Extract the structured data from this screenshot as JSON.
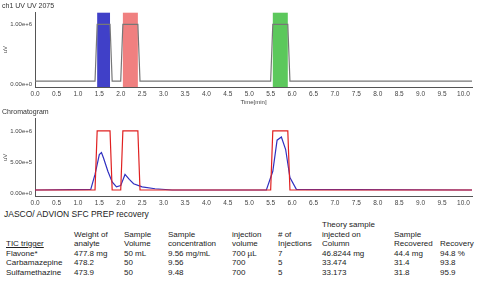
{
  "chart_data": [
    {
      "type": "line",
      "title": "ch1 UV UV 2075",
      "y_label": "uV",
      "x_label": "Time[min]",
      "xlim": [
        0,
        10.2
      ],
      "xticks": [
        {
          "value": 0,
          "label": "0.0"
        },
        {
          "value": 0.5,
          "label": "0.5"
        },
        {
          "value": 1,
          "label": "1.0"
        },
        {
          "value": 1.5,
          "label": "1.5"
        },
        {
          "value": 2,
          "label": "2.0"
        },
        {
          "value": 2.5,
          "label": "2.5"
        },
        {
          "value": 3,
          "label": "3.0"
        },
        {
          "value": 3.5,
          "label": "3.5"
        },
        {
          "value": 4,
          "label": "4.0"
        },
        {
          "value": 4.5,
          "label": "4.5"
        },
        {
          "value": 5,
          "label": "5.0"
        },
        {
          "value": 5.5,
          "label": "5.5"
        },
        {
          "value": 6,
          "label": "6.0"
        },
        {
          "value": 6.5,
          "label": "6.5"
        },
        {
          "value": 7,
          "label": "7.0"
        },
        {
          "value": 7.5,
          "label": "7.5"
        },
        {
          "value": 8,
          "label": "8.0"
        },
        {
          "value": 8.5,
          "label": "8.5"
        },
        {
          "value": 9,
          "label": "9.0"
        },
        {
          "value": 9.5,
          "label": "9.5"
        },
        {
          "value": 10,
          "label": "10.0"
        }
      ],
      "ylim": [
        -50000,
        1200000
      ],
      "yticks": [
        {
          "value": 0,
          "label": "0.00e+0"
        },
        {
          "value": 1000000,
          "label": "1.00e+6"
        }
      ],
      "grid": false,
      "fractions": [
        {
          "start": 1.45,
          "end": 1.75,
          "color": "#4040c8"
        },
        {
          "start": 2.05,
          "end": 2.4,
          "color": "#f08080"
        },
        {
          "start": 5.55,
          "end": 5.9,
          "color": "#5cc85c"
        }
      ],
      "series": [
        {
          "color": "#777777",
          "x": [
            0,
            1.4,
            1.45,
            1.75,
            1.8,
            2.0,
            2.05,
            2.4,
            2.45,
            5.5,
            5.55,
            5.9,
            5.95,
            10.2
          ],
          "values": [
            50000,
            50000,
            1000000,
            1000000,
            50000,
            50000,
            1000000,
            1000000,
            50000,
            50000,
            1000000,
            1000000,
            50000,
            50000
          ]
        }
      ]
    },
    {
      "type": "line",
      "title": "Chromatogram",
      "y_label": "uV",
      "xlim": [
        0,
        10.2
      ],
      "xticks": [
        {
          "value": 0,
          "label": "0.0"
        },
        {
          "value": 0.5,
          "label": "0.5"
        },
        {
          "value": 1,
          "label": "1.0"
        },
        {
          "value": 1.5,
          "label": "1.5"
        },
        {
          "value": 2,
          "label": "2.0"
        },
        {
          "value": 2.5,
          "label": "2.5"
        },
        {
          "value": 3,
          "label": "3.0"
        },
        {
          "value": 3.5,
          "label": "3.5"
        },
        {
          "value": 4,
          "label": "4.0"
        },
        {
          "value": 4.5,
          "label": "4.5"
        },
        {
          "value": 5,
          "label": "5.0"
        },
        {
          "value": 5.5,
          "label": "5.5"
        },
        {
          "value": 6,
          "label": "6.0"
        },
        {
          "value": 6.5,
          "label": "6.5"
        },
        {
          "value": 7,
          "label": "7.0"
        },
        {
          "value": 7.5,
          "label": "7.5"
        },
        {
          "value": 8,
          "label": "8.0"
        },
        {
          "value": 8.5,
          "label": "8.5"
        },
        {
          "value": 9,
          "label": "9.0"
        },
        {
          "value": 9.5,
          "label": "9.5"
        },
        {
          "value": 10,
          "label": "10.0"
        }
      ],
      "ylim": [
        -50000,
        1200000
      ],
      "yticks": [
        {
          "value": 0,
          "label": "0.00e+0"
        },
        {
          "value": 500000,
          "label": "5.00e+5"
        },
        {
          "value": 1000000,
          "label": "1.00e+6"
        }
      ],
      "grid": false,
      "series": [
        {
          "color": "#e02020",
          "x": [
            0,
            1.4,
            1.45,
            1.75,
            1.8,
            2.0,
            2.05,
            2.4,
            2.45,
            5.5,
            5.55,
            5.9,
            5.95,
            10.2
          ],
          "values": [
            50000,
            50000,
            1000000,
            1000000,
            50000,
            50000,
            1000000,
            1000000,
            50000,
            50000,
            1000000,
            1000000,
            50000,
            50000
          ]
        },
        {
          "color": "#3030c0",
          "x": [
            0,
            1.3,
            1.4,
            1.5,
            1.55,
            1.6,
            1.7,
            1.8,
            1.9,
            2.0,
            2.1,
            2.2,
            2.3,
            2.5,
            2.8,
            3.2,
            5.4,
            5.55,
            5.65,
            5.75,
            5.85,
            5.95,
            6.1,
            10.2
          ],
          "values": [
            50000,
            60000,
            300000,
            620000,
            650000,
            560000,
            350000,
            180000,
            100000,
            120000,
            300000,
            220000,
            150000,
            100000,
            70000,
            50000,
            50000,
            350000,
            850000,
            900000,
            700000,
            250000,
            60000,
            50000
          ]
        }
      ]
    }
  ],
  "table": {
    "title": "JASCO/ ADVION SFC PREP recovery",
    "header": [
      "TIC trigger",
      "Weight of analyte",
      "Sample Volume",
      "Sample concentration",
      "injection volume",
      "# of Injections",
      "Theory sample injected on Column",
      "Sample Recovered",
      "Recovery"
    ],
    "rows": [
      [
        "Flavone*",
        "477.8 mg",
        "50 mL",
        "9.56 mg/mL",
        "700 µL",
        "7",
        "46.8244 mg",
        "44.4 mg",
        "94.8 %"
      ],
      [
        "Carbamazepine",
        "478.2",
        "50",
        "9.56",
        "700",
        "5",
        "33.474",
        "31.4",
        "93.8"
      ],
      [
        "Sulfamethazine",
        "473.9",
        "50",
        "9.48",
        "700",
        "5",
        "33.173",
        "31.8",
        "95.9"
      ]
    ]
  }
}
